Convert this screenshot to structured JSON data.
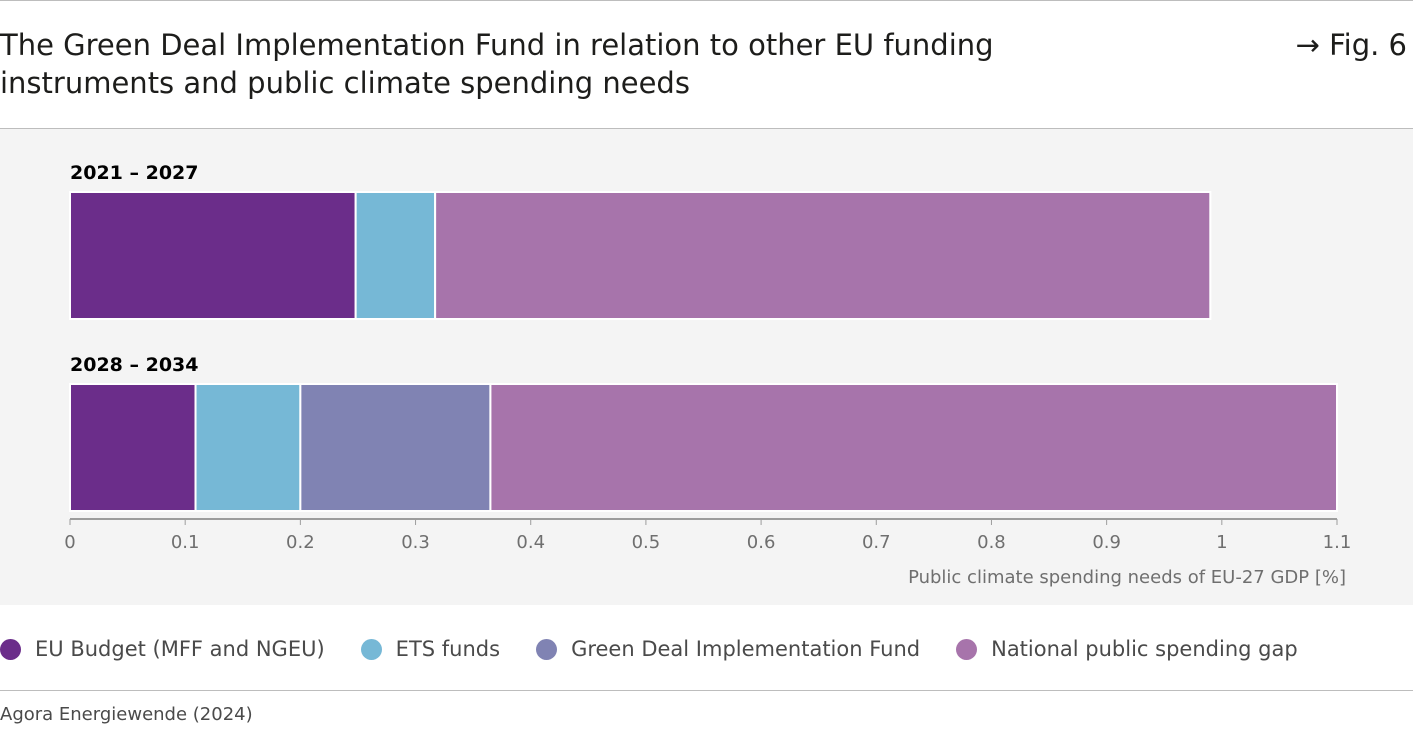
{
  "header": {
    "title_line1": "The Green Deal Implementation Fund in relation to other EU funding",
    "title_line2": "instruments and public climate spending needs",
    "fig_label": "→ Fig. 6"
  },
  "footer": {
    "source": "Agora Energiewende (2024)"
  },
  "chart_data": {
    "type": "bar",
    "orientation": "horizontal",
    "stacked": true,
    "title": "The Green Deal Implementation Fund in relation to other EU funding instruments and public climate spending needs",
    "xlabel": "Public climate spending needs of EU-27 GDP [%]",
    "xlim": [
      0,
      1.1
    ],
    "xticks": [
      "0",
      "0.1",
      "0.2",
      "0.3",
      "0.4",
      "0.5",
      "0.6",
      "0.7",
      "0.8",
      "0.9",
      "1",
      "1.1"
    ],
    "grid": false,
    "legend_position": "bottom",
    "categories": [
      "2021 – 2027",
      "2028 – 2034"
    ],
    "series": [
      {
        "name": "EU Budget (MFF and NGEU)",
        "color": "#6b2d8a",
        "values": [
          0.248,
          0.109
        ]
      },
      {
        "name": "ETS funds",
        "color": "#76b8d6",
        "values": [
          0.069,
          0.091
        ]
      },
      {
        "name": "Green Deal Implementation Fund",
        "color": "#8083b3",
        "values": [
          0,
          0.165
        ]
      },
      {
        "name": "National public spending gap",
        "color": "#a774ab",
        "values": [
          0.673,
          0.735
        ]
      }
    ]
  }
}
